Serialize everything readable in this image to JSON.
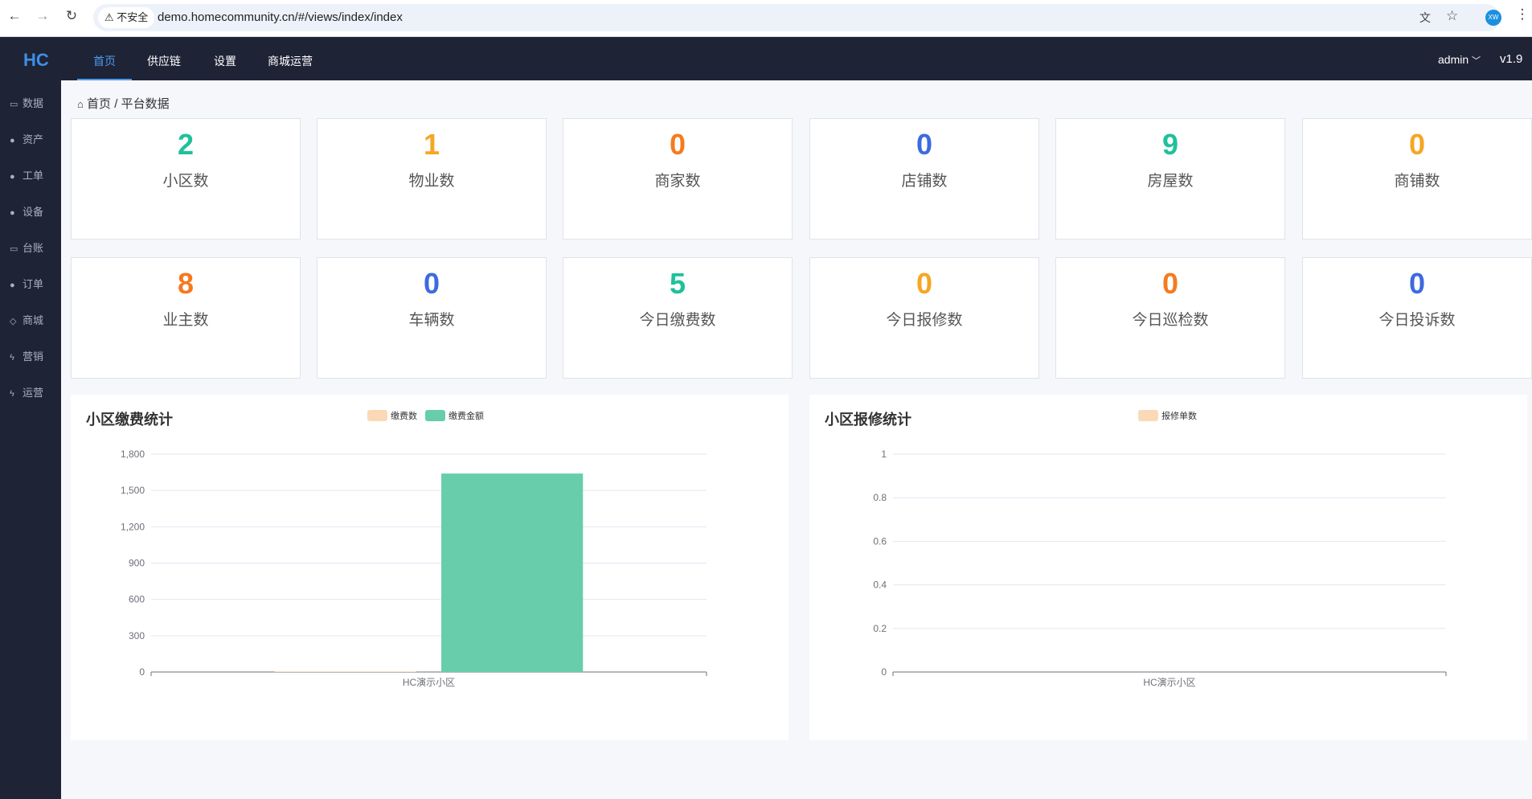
{
  "browser": {
    "security_label": "不安全",
    "url": "demo.homecommunity.cn/#/views/index/index",
    "avatar": "XW"
  },
  "topnav": {
    "logo": "HC",
    "items": [
      {
        "label": "首页",
        "active": true
      },
      {
        "label": "供应链"
      },
      {
        "label": "设置"
      },
      {
        "label": "商城运营"
      }
    ],
    "user": "admin",
    "version": "v1.9"
  },
  "sidebar": {
    "items": [
      {
        "icon": "laptop-icon",
        "label": "数据"
      },
      {
        "icon": "globe-icon",
        "label": "资产"
      },
      {
        "icon": "globe-icon",
        "label": "工单"
      },
      {
        "icon": "globe-icon",
        "label": "设备"
      },
      {
        "icon": "laptop-icon",
        "label": "台账"
      },
      {
        "icon": "globe-icon",
        "label": "订单"
      },
      {
        "icon": "diamond-icon",
        "label": "商城"
      },
      {
        "icon": "bolt-icon",
        "label": "营销"
      },
      {
        "icon": "bolt-icon",
        "label": "运营"
      }
    ]
  },
  "breadcrumb": {
    "home": "首页",
    "current": "平台数据"
  },
  "stats": [
    {
      "value": "2",
      "label": "小区数",
      "color": "#1fc19a"
    },
    {
      "value": "1",
      "label": "物业数",
      "color": "#f5a623"
    },
    {
      "value": "0",
      "label": "商家数",
      "color": "#f57a1f"
    },
    {
      "value": "0",
      "label": "店铺数",
      "color": "#3d6ae0"
    },
    {
      "value": "9",
      "label": "房屋数",
      "color": "#1fc19a"
    },
    {
      "value": "0",
      "label": "商铺数",
      "color": "#f5a623"
    },
    {
      "value": "8",
      "label": "业主数",
      "color": "#f57a1f"
    },
    {
      "value": "0",
      "label": "车辆数",
      "color": "#3d6ae0"
    },
    {
      "value": "5",
      "label": "今日缴费数",
      "color": "#1fc19a"
    },
    {
      "value": "0",
      "label": "今日报修数",
      "color": "#f5a623"
    },
    {
      "value": "0",
      "label": "今日巡检数",
      "color": "#f57a1f"
    },
    {
      "value": "0",
      "label": "今日投诉数",
      "color": "#3d6ae0"
    }
  ],
  "chart_data": [
    {
      "type": "bar",
      "title": "小区缴费统计",
      "categories": [
        "HC演示小区"
      ],
      "ylim": [
        0,
        1800
      ],
      "yticks": [
        "0",
        "300",
        "600",
        "900",
        "1,200",
        "1,500",
        "1,800"
      ],
      "ytick_values": [
        0,
        300,
        600,
        900,
        1200,
        1500,
        1800
      ],
      "grid": true,
      "legend": "top-center",
      "series": [
        {
          "name": "缴费数",
          "color": "#fcd9b6",
          "values": [
            5
          ]
        },
        {
          "name": "缴费金额",
          "color": "#67cdaa",
          "values": [
            1640
          ]
        }
      ]
    },
    {
      "type": "bar",
      "title": "小区报修统计",
      "categories": [
        "HC演示小区"
      ],
      "ylim": [
        0,
        1
      ],
      "yticks": [
        "0",
        "0.2",
        "0.4",
        "0.6",
        "0.8",
        "1"
      ],
      "ytick_values": [
        0,
        0.2,
        0.4,
        0.6,
        0.8,
        1
      ],
      "grid": true,
      "legend": "top-center",
      "series": [
        {
          "name": "报修单数",
          "color": "#fcd9b6",
          "values": [
            0
          ]
        }
      ]
    }
  ]
}
